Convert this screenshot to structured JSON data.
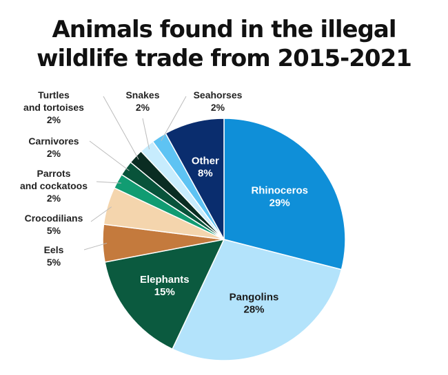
{
  "title_lines": [
    "Animals found in the illegal",
    "wildlife trade from 2015-2021"
  ],
  "chart_data": {
    "type": "pie",
    "title": "Animals found in the illegal wildlife trade from 2015-2021",
    "slices": [
      {
        "label": "Rhinoceros",
        "lines": [
          "Rhinoceros"
        ],
        "value": 29,
        "pct": "29%",
        "color": "#0f8fd8",
        "text_color": "#ffffff",
        "labelpos": "inside"
      },
      {
        "label": "Pangolins",
        "lines": [
          "Pangolins"
        ],
        "value": 28,
        "pct": "28%",
        "color": "#b3e3fb",
        "text_color": "#1a1a1a",
        "labelpos": "inside"
      },
      {
        "label": "Elephants",
        "lines": [
          "Elephants"
        ],
        "value": 15,
        "pct": "15%",
        "color": "#0b5a3f",
        "text_color": "#ffffff",
        "labelpos": "inside"
      },
      {
        "label": "Eels",
        "lines": [
          "Eels"
        ],
        "value": 5,
        "pct": "5%",
        "color": "#c47a3d",
        "text_color": "#222222",
        "labelpos": "outside"
      },
      {
        "label": "Crocodilians",
        "lines": [
          "Crocodilians"
        ],
        "value": 5,
        "pct": "5%",
        "color": "#f4d5ad",
        "text_color": "#222222",
        "labelpos": "outside"
      },
      {
        "label": "Parrots and cockatoos",
        "lines": [
          "Parrots",
          "and cockatoos"
        ],
        "value": 2,
        "pct": "2%",
        "color": "#119c72",
        "text_color": "#222222",
        "labelpos": "outside"
      },
      {
        "label": "Carnivores",
        "lines": [
          "Carnivores"
        ],
        "value": 2,
        "pct": "2%",
        "color": "#08533a",
        "text_color": "#222222",
        "labelpos": "outside"
      },
      {
        "label": "Turtles and tortoises",
        "lines": [
          "Turtles",
          "and tortoises"
        ],
        "value": 2,
        "pct": "2%",
        "color": "#0a2c22",
        "text_color": "#222222",
        "labelpos": "outside"
      },
      {
        "label": "Snakes",
        "lines": [
          "Snakes"
        ],
        "value": 2,
        "pct": "2%",
        "color": "#c7ecfd",
        "text_color": "#222222",
        "labelpos": "outside"
      },
      {
        "label": "Seahorses",
        "lines": [
          "Seahorses"
        ],
        "value": 2,
        "pct": "2%",
        "color": "#5ec3f3",
        "text_color": "#222222",
        "labelpos": "outside"
      },
      {
        "label": "Other",
        "lines": [
          "Other"
        ],
        "value": 8,
        "pct": "8%",
        "color": "#0a2d6e",
        "text_color": "#ffffff",
        "labelpos": "inside"
      }
    ]
  }
}
